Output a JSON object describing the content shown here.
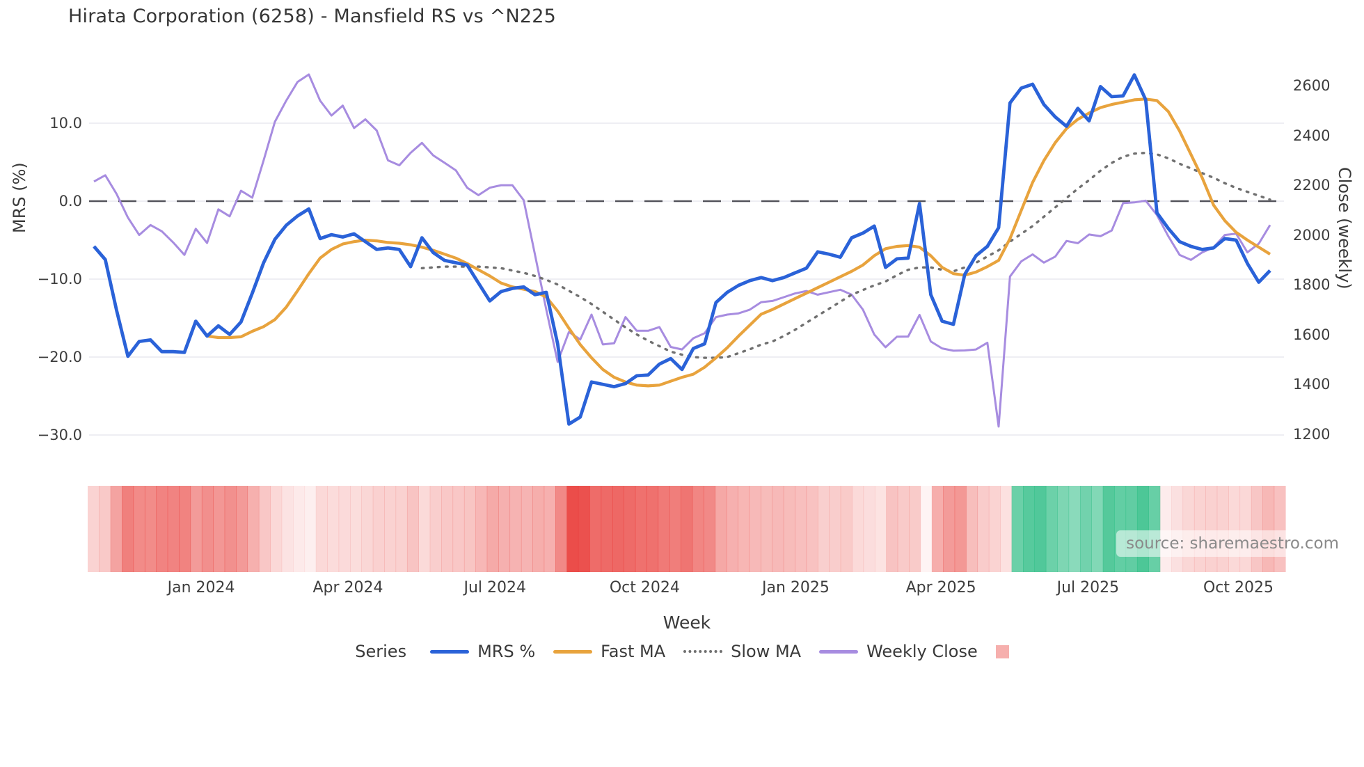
{
  "title": "Hirata Corporation (6258) - Mansfield RS vs ^N225",
  "source_credit": "source: sharemaestro.com",
  "colors": {
    "mrs": "#2a62d8",
    "fast_ma": "#e8a33d",
    "slow_ma": "#707070",
    "weekly_close": "#a78ce0",
    "strip_red": "#e9403c",
    "strip_green": "#2ebd85",
    "legend_square": "rgba(233,64,60,0.42)",
    "zero_line": "#53535b",
    "grid": "#e8e8ef",
    "text": "#3a3a3a"
  },
  "chart_data": {
    "type": "line",
    "title": "Hirata Corporation (6258) - Mansfield RS vs ^N225",
    "xlabel": "Week",
    "ylabel_left": "MRS (%)",
    "ylabel_right": "Close (weekly)",
    "ylim_left": [
      -33.0,
      18.3
    ],
    "ylim_right": [
      1101,
      2709
    ],
    "grid": true,
    "legend_position": "bottom",
    "legend_title": "Series",
    "x_unit": "weekly index, week 0 = early Nov 2023",
    "x_ticks": [
      {
        "label": "Jan 2024",
        "week": 9.48
      },
      {
        "label": "Apr 2024",
        "week": 22.46
      },
      {
        "label": "Jul 2024",
        "week": 35.46
      },
      {
        "label": "Oct 2024",
        "week": 48.7
      },
      {
        "label": "Jan 2025",
        "week": 62.06
      },
      {
        "label": "Apr 2025",
        "week": 74.9
      },
      {
        "label": "Jul 2025",
        "week": 87.9
      },
      {
        "label": "Oct 2025",
        "week": 101.2
      }
    ],
    "y_left_ticks": [
      {
        "value": 10,
        "label": "10.0"
      },
      {
        "value": 0,
        "label": "0.0"
      },
      {
        "value": -10,
        "label": "−10.0"
      },
      {
        "value": -20,
        "label": "−20.0"
      },
      {
        "value": -30,
        "label": "−30.0"
      }
    ],
    "y_right_ticks": [
      {
        "value": 2600,
        "label": "2600"
      },
      {
        "value": 2400,
        "label": "2400"
      },
      {
        "value": 2200,
        "label": "2200"
      },
      {
        "value": 2000,
        "label": "2000"
      },
      {
        "value": 1800,
        "label": "1800"
      },
      {
        "value": 1600,
        "label": "1600"
      },
      {
        "value": 1400,
        "label": "1400"
      },
      {
        "value": 1200,
        "label": "1200"
      }
    ],
    "zero_reference_line": 0,
    "series": [
      {
        "name": "MRS %",
        "axis": "left",
        "style": "solid",
        "values": [
          -5.8,
          -7.5,
          -14.0,
          -19.9,
          -18.0,
          -17.8,
          -19.3,
          -19.3,
          -19.4,
          -15.4,
          -17.3,
          -16.0,
          -17.1,
          -15.5,
          -11.8,
          -7.9,
          -4.9,
          -3.1,
          -1.9,
          -1.0,
          -4.8,
          -4.3,
          -4.6,
          -4.2,
          -5.2,
          -6.2,
          -6.0,
          -6.2,
          -8.4,
          -4.7,
          -6.6,
          -7.6,
          -7.9,
          -8.2,
          -10.5,
          -12.8,
          -11.6,
          -11.2,
          -11.0,
          -12.0,
          -11.7,
          -18.3,
          -28.6,
          -27.7,
          -23.2,
          -23.5,
          -23.8,
          -23.4,
          -22.4,
          -22.3,
          -20.9,
          -20.2,
          -21.6,
          -18.9,
          -18.3,
          -13.0,
          -11.7,
          -10.8,
          -10.2,
          -9.8,
          -10.2,
          -9.8,
          -9.2,
          -8.6,
          -6.5,
          -6.8,
          -7.2,
          -4.7,
          -4.1,
          -3.2,
          -8.5,
          -7.4,
          -7.3,
          -0.3,
          -12.0,
          -15.4,
          -15.8,
          -9.4,
          -7.0,
          -5.8,
          -3.4,
          12.6,
          14.5,
          15.0,
          12.4,
          10.8,
          9.6,
          11.9,
          10.3,
          14.7,
          13.4,
          13.5,
          16.2,
          13.0,
          -1.5,
          -3.5,
          -5.2,
          -5.8,
          -6.2,
          -6.0,
          -4.8,
          -5.0,
          -8.0,
          -10.4,
          -8.9
        ]
      },
      {
        "name": "Fast MA",
        "axis": "left",
        "style": "solid",
        "values": [
          null,
          null,
          null,
          null,
          null,
          null,
          null,
          null,
          null,
          null,
          -17.3,
          -17.5,
          -17.5,
          -17.4,
          -16.7,
          -16.1,
          -15.2,
          -13.6,
          -11.5,
          -9.3,
          -7.3,
          -6.2,
          -5.5,
          -5.2,
          -5.0,
          -5.1,
          -5.3,
          -5.4,
          -5.6,
          -5.9,
          -6.3,
          -6.8,
          -7.3,
          -8.0,
          -8.8,
          -9.6,
          -10.5,
          -11.0,
          -11.3,
          -11.6,
          -12.3,
          -14.1,
          -16.3,
          -18.4,
          -20.1,
          -21.6,
          -22.6,
          -23.2,
          -23.6,
          -23.7,
          -23.6,
          -23.1,
          -22.6,
          -22.2,
          -21.3,
          -20.1,
          -18.8,
          -17.3,
          -15.9,
          -14.5,
          -13.9,
          -13.2,
          -12.5,
          -11.8,
          -11.1,
          -10.4,
          -9.7,
          -9.0,
          -8.2,
          -7.0,
          -6.1,
          -5.8,
          -5.7,
          -5.9,
          -7.0,
          -8.5,
          -9.3,
          -9.5,
          -9.1,
          -8.4,
          -7.6,
          -4.8,
          -1.2,
          2.4,
          5.2,
          7.5,
          9.3,
          10.5,
          11.3,
          12.0,
          12.4,
          12.7,
          13.0,
          13.1,
          12.9,
          11.5,
          9.0,
          6.0,
          3.0,
          -0.5,
          -2.5,
          -4.0,
          -5.0,
          -5.9,
          -6.8
        ]
      },
      {
        "name": "Slow MA",
        "axis": "left",
        "style": "dotted",
        "values": [
          null,
          null,
          null,
          null,
          null,
          null,
          null,
          null,
          null,
          null,
          null,
          null,
          null,
          null,
          null,
          null,
          null,
          null,
          null,
          null,
          null,
          null,
          null,
          null,
          null,
          null,
          null,
          null,
          null,
          -8.6,
          -8.5,
          -8.4,
          -8.4,
          -8.4,
          -8.4,
          -8.5,
          -8.6,
          -8.9,
          -9.2,
          -9.6,
          -10.1,
          -10.7,
          -11.5,
          -12.3,
          -13.2,
          -14.2,
          -15.2,
          -16.2,
          -17.1,
          -17.9,
          -18.6,
          -19.3,
          -19.7,
          -20.0,
          -20.1,
          -20.1,
          -20.0,
          -19.5,
          -19.0,
          -18.4,
          -18.0,
          -17.3,
          -16.5,
          -15.6,
          -14.7,
          -13.8,
          -12.9,
          -12.0,
          -11.4,
          -10.8,
          -10.3,
          -9.5,
          -8.8,
          -8.5,
          -8.5,
          -8.8,
          -9.0,
          -8.5,
          -7.9,
          -7.1,
          -6.3,
          -5.2,
          -4.2,
          -3.2,
          -2.0,
          -0.8,
          0.4,
          1.6,
          2.7,
          3.9,
          4.9,
          5.7,
          6.1,
          6.2,
          6.0,
          5.5,
          4.8,
          4.2,
          3.6,
          3.0,
          2.3,
          1.7,
          1.2,
          0.7,
          0.2
        ]
      },
      {
        "name": "Weekly Close",
        "axis": "right",
        "style": "solid",
        "values": [
          2215,
          2240,
          2165,
          2070,
          2000,
          2040,
          2015,
          1970,
          1920,
          2025,
          1968,
          2103,
          2075,
          2178,
          2150,
          2300,
          2455,
          2540,
          2615,
          2645,
          2540,
          2480,
          2520,
          2430,
          2465,
          2420,
          2300,
          2280,
          2330,
          2370,
          2320,
          2290,
          2260,
          2190,
          2160,
          2190,
          2200,
          2200,
          2140,
          1920,
          1700,
          1490,
          1610,
          1580,
          1680,
          1560,
          1565,
          1670,
          1615,
          1615,
          1630,
          1550,
          1540,
          1585,
          1605,
          1670,
          1680,
          1685,
          1700,
          1730,
          1735,
          1750,
          1765,
          1775,
          1760,
          1770,
          1780,
          1760,
          1700,
          1600,
          1549,
          1591,
          1592,
          1679,
          1572,
          1544,
          1535,
          1536,
          1540,
          1567,
          1230,
          1833,
          1894,
          1922,
          1889,
          1913,
          1976,
          1967,
          2002,
          1995,
          2018,
          2128,
          2131,
          2138,
          2080,
          1995,
          1920,
          1900,
          1930,
          1950,
          2000,
          2005,
          1930,
          1965,
          2040
        ]
      }
    ],
    "heatmap_strip": {
      "description": "one cell per week, red for negative MRS, green for positive, intensity scales with |MRS|",
      "source_series": "MRS %"
    }
  },
  "legend": {
    "title": "Series",
    "items": [
      {
        "label": "MRS %",
        "type": "line",
        "color_key": "mrs"
      },
      {
        "label": "Fast MA",
        "type": "line",
        "color_key": "fast_ma"
      },
      {
        "label": "Slow MA",
        "type": "dotted",
        "color_key": "slow_ma"
      },
      {
        "label": "Weekly Close",
        "type": "line",
        "color_key": "weekly_close"
      },
      {
        "label": "",
        "type": "square",
        "color_key": "legend_square"
      }
    ]
  }
}
